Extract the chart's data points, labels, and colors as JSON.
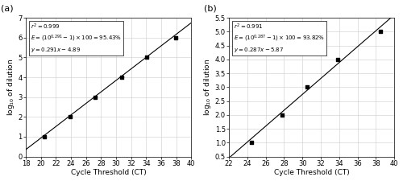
{
  "panel_a": {
    "label": "(a)",
    "scatter_x": [
      20.5,
      23.9,
      27.2,
      30.8,
      34.1,
      37.9
    ],
    "scatter_y": [
      1,
      2,
      3,
      4,
      5,
      6
    ],
    "slope": 0.291,
    "intercept": -4.89,
    "xlim": [
      18,
      40
    ],
    "ylim": [
      0,
      7
    ],
    "xticks": [
      18,
      20,
      22,
      24,
      26,
      28,
      30,
      32,
      34,
      36,
      38,
      40
    ],
    "yticks": [
      0,
      1,
      2,
      3,
      4,
      5,
      6,
      7
    ],
    "annot_line1": "$r^2 = 0.999$",
    "annot_line2": "$E=(10^{0.291} - 1) \\times 100 = 95.43\\%$",
    "annot_line3": "$y = 0.291x-4.89$",
    "xlabel": "Cycle Threshold (CT)",
    "ylabel": "$\\mathrm{log_{10}}$ of dilution"
  },
  "panel_b": {
    "label": "(b)",
    "scatter_x": [
      24.5,
      27.8,
      30.5,
      33.8,
      38.5
    ],
    "scatter_y": [
      1,
      2,
      3,
      4,
      5
    ],
    "slope": 0.287,
    "intercept": -5.87,
    "xlim": [
      22,
      40
    ],
    "ylim": [
      0.5,
      5.5
    ],
    "xticks": [
      22,
      24,
      26,
      28,
      30,
      32,
      34,
      36,
      38,
      40
    ],
    "yticks": [
      0.5,
      1.0,
      1.5,
      2.0,
      2.5,
      3.0,
      3.5,
      4.0,
      4.5,
      5.0,
      5.5
    ],
    "annot_line1": "$r^2 = 0.991$",
    "annot_line2": "$E=(10^{0.287} - 1) \\times 100 = 93.82\\%$",
    "annot_line3": "$y = 0.287x-5.87$",
    "xlabel": "Cycle Threshold (CT)",
    "ylabel": "$\\mathrm{log_{10}}$ of dilution"
  },
  "line_color": "#000000",
  "marker_color": "#000000",
  "bg_color": "#ffffff",
  "grid_color": "#cccccc",
  "annotation_fontsize": 5.0,
  "axis_label_fontsize": 6.5,
  "tick_fontsize": 6.0,
  "panel_label_fontsize": 8.0
}
